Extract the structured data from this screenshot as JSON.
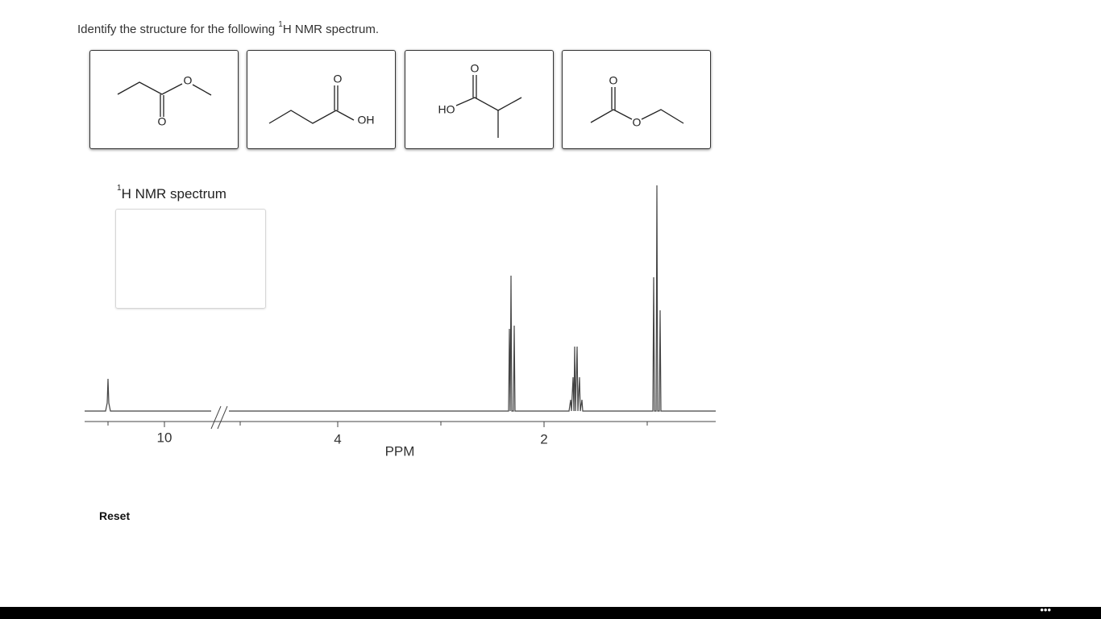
{
  "question": {
    "prefix": "Identify the structure for the following ",
    "sup": "1",
    "suffix": "H NMR spectrum."
  },
  "structures": [
    {
      "atoms": [
        "O",
        "O"
      ]
    },
    {
      "atoms": [
        "O",
        "OH"
      ]
    },
    {
      "atoms": [
        "O",
        "HO"
      ]
    },
    {
      "atoms": [
        "O",
        "O"
      ]
    }
  ],
  "spectrum": {
    "sup": "1",
    "label": "H NMR spectrum",
    "ticks": [
      "10",
      "4",
      "2"
    ],
    "axis_label": "PPM"
  },
  "reset": "Reset",
  "menu": "•••"
}
